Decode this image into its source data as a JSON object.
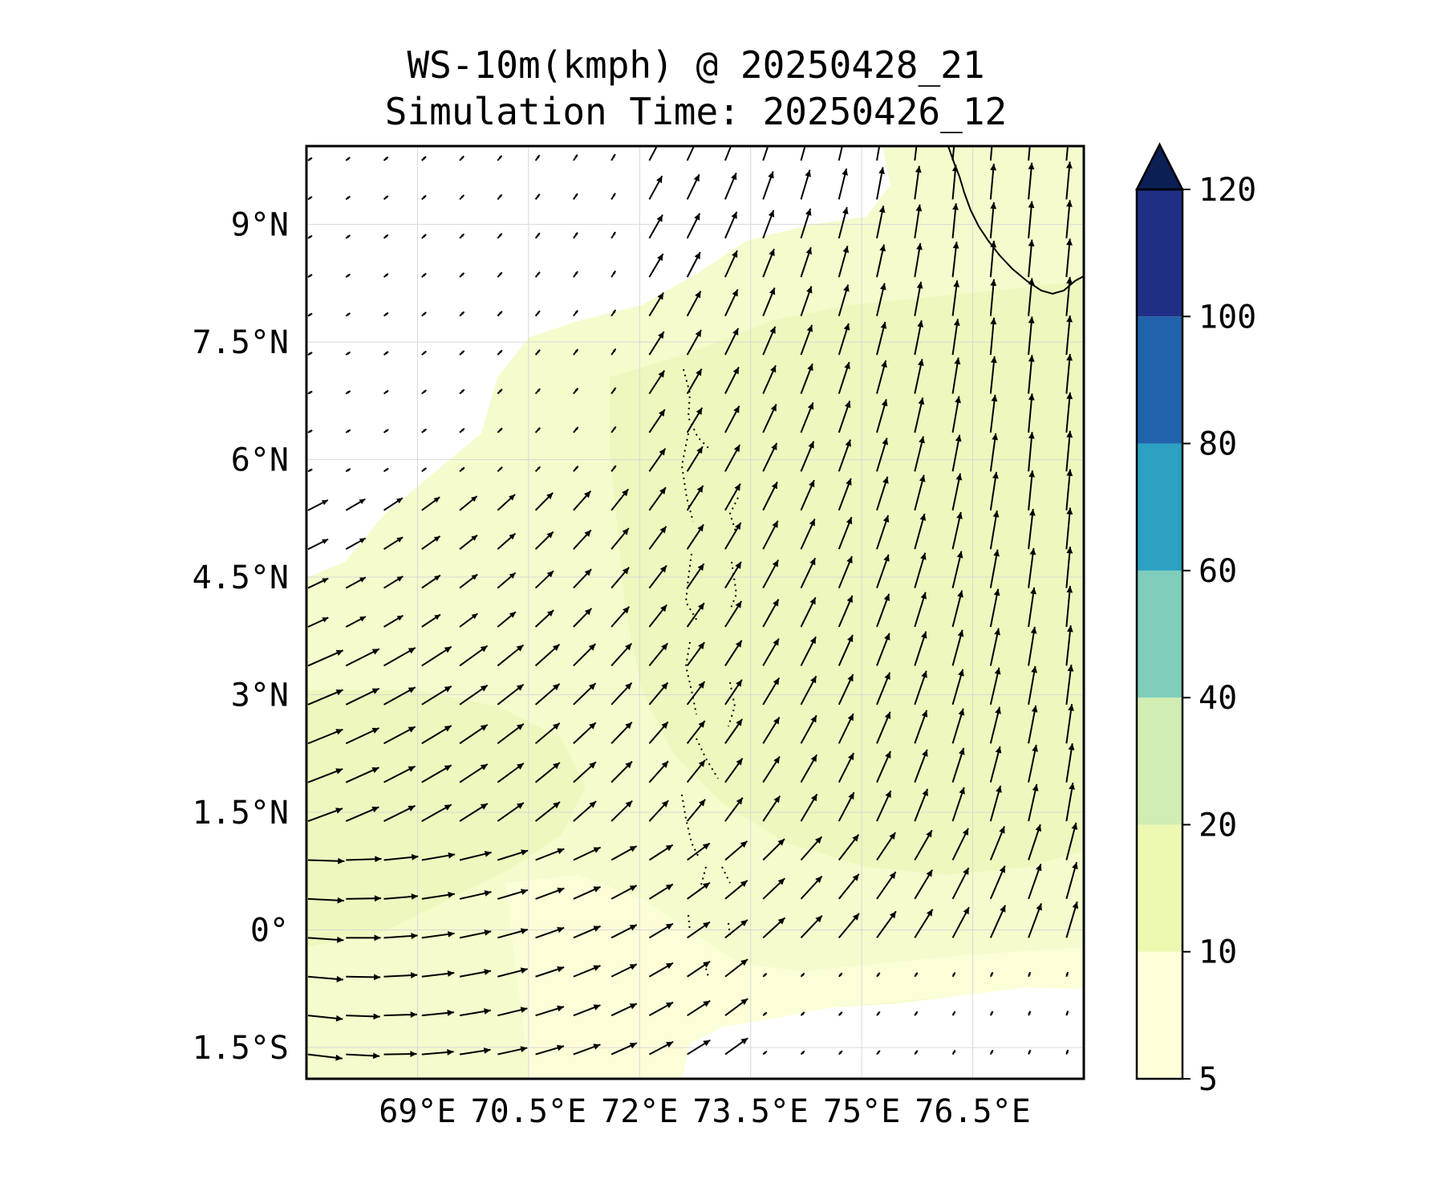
{
  "title": {
    "line1": "WS-10m(kmph) @ 20250428_21",
    "line2": "Simulation Time: 20250426_12"
  },
  "map": {
    "lon_range": [
      67.5,
      78.0
    ],
    "lat_range": [
      -1.9,
      10.0
    ],
    "lon_ticks": [
      {
        "value": 69.0,
        "label": "69°E"
      },
      {
        "value": 70.5,
        "label": "70.5°E"
      },
      {
        "value": 72.0,
        "label": "72°E"
      },
      {
        "value": 73.5,
        "label": "73.5°E"
      },
      {
        "value": 75.0,
        "label": "75°E"
      },
      {
        "value": 76.5,
        "label": "76.5°E"
      }
    ],
    "lat_ticks": [
      {
        "value": 9.0,
        "label": "9°N"
      },
      {
        "value": 7.5,
        "label": "7.5°N"
      },
      {
        "value": 6.0,
        "label": "6°N"
      },
      {
        "value": 4.5,
        "label": "4.5°N"
      },
      {
        "value": 3.0,
        "label": "3°N"
      },
      {
        "value": 1.5,
        "label": "1.5°N"
      },
      {
        "value": 0.0,
        "label": "0°"
      },
      {
        "value": -1.5,
        "label": "1.5°S"
      }
    ],
    "gridlines": true,
    "vectors": "wind-vector-field"
  },
  "colorbar": {
    "levels": [
      {
        "label": "5",
        "value": 5,
        "color": "#ffffd9"
      },
      {
        "label": "10",
        "value": 10,
        "color": "#edf8b1"
      },
      {
        "label": "20",
        "value": 20,
        "color": "#d2edb3"
      },
      {
        "label": "40",
        "value": 40,
        "color": "#7fcdbb"
      },
      {
        "label": "60",
        "value": 60,
        "color": "#2ca1c2"
      },
      {
        "label": "80",
        "value": 80,
        "color": "#2163aa"
      },
      {
        "label": "100",
        "value": 100,
        "color": "#1e2f85"
      },
      {
        "label": "120",
        "value": 120,
        "color": "#0b1f55"
      }
    ],
    "extend": "max"
  }
}
